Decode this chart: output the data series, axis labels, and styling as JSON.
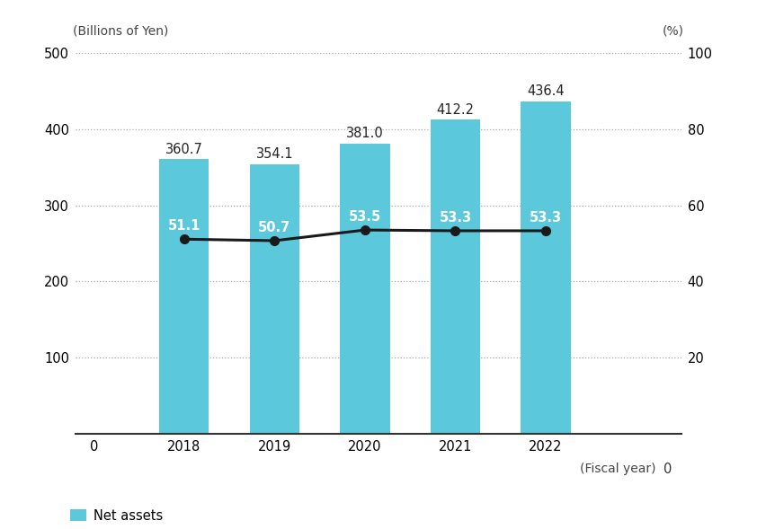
{
  "years": [
    2018,
    2019,
    2020,
    2021,
    2022
  ],
  "net_assets": [
    360.7,
    354.1,
    381.0,
    412.2,
    436.4
  ],
  "equity_ratio": [
    51.1,
    50.7,
    53.5,
    53.3,
    53.3
  ],
  "bar_color": "#5CC8DC",
  "line_color": "#1a1a1a",
  "marker_color": "#1a1a1a",
  "left_ylabel": "(Billions of Yen)",
  "right_ylabel": "(%)",
  "xlabel_suffix": "(Fiscal year)",
  "ylim_left": [
    0,
    500
  ],
  "ylim_right": [
    0,
    100
  ],
  "yticks_left": [
    100,
    200,
    300,
    400,
    500
  ],
  "yticks_right": [
    20,
    40,
    60,
    80,
    100
  ],
  "legend_net_assets": "Net assets",
  "bg_color": "#ffffff",
  "grid_color": "#aaaaaa",
  "bar_width": 0.55,
  "label_fontsize": 10,
  "tick_fontsize": 10.5,
  "annotation_fontsize": 10.5,
  "annotation_color_dark": "#222222",
  "annotation_color_white": "#ffffff"
}
